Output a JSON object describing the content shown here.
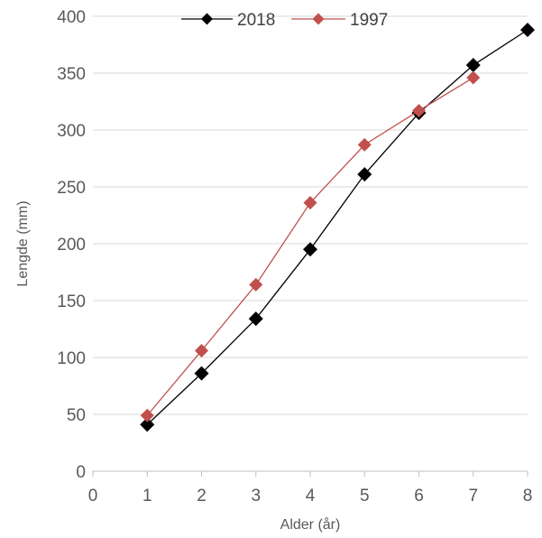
{
  "chart_data": {
    "type": "line",
    "xlabel": "Alder (år)",
    "ylabel": "Lengde (mm)",
    "xlim": [
      0,
      8
    ],
    "ylim": [
      0,
      400
    ],
    "xticks": [
      0,
      1,
      2,
      3,
      4,
      5,
      6,
      7,
      8
    ],
    "yticks": [
      0,
      50,
      100,
      150,
      200,
      250,
      300,
      350,
      400
    ],
    "grid": "horizontal",
    "legend_position": "top",
    "series": [
      {
        "name": "2018",
        "color": "#000000",
        "marker": "diamond",
        "x": [
          1,
          2,
          3,
          4,
          5,
          6,
          7,
          8
        ],
        "y": [
          41,
          86,
          134,
          195,
          261,
          315,
          357,
          388
        ]
      },
      {
        "name": "1997",
        "color": "#C0504D",
        "marker": "diamond",
        "x": [
          1,
          2,
          3,
          4,
          5,
          6,
          7
        ],
        "y": [
          49,
          106,
          164,
          236,
          287,
          317,
          346
        ]
      }
    ]
  }
}
